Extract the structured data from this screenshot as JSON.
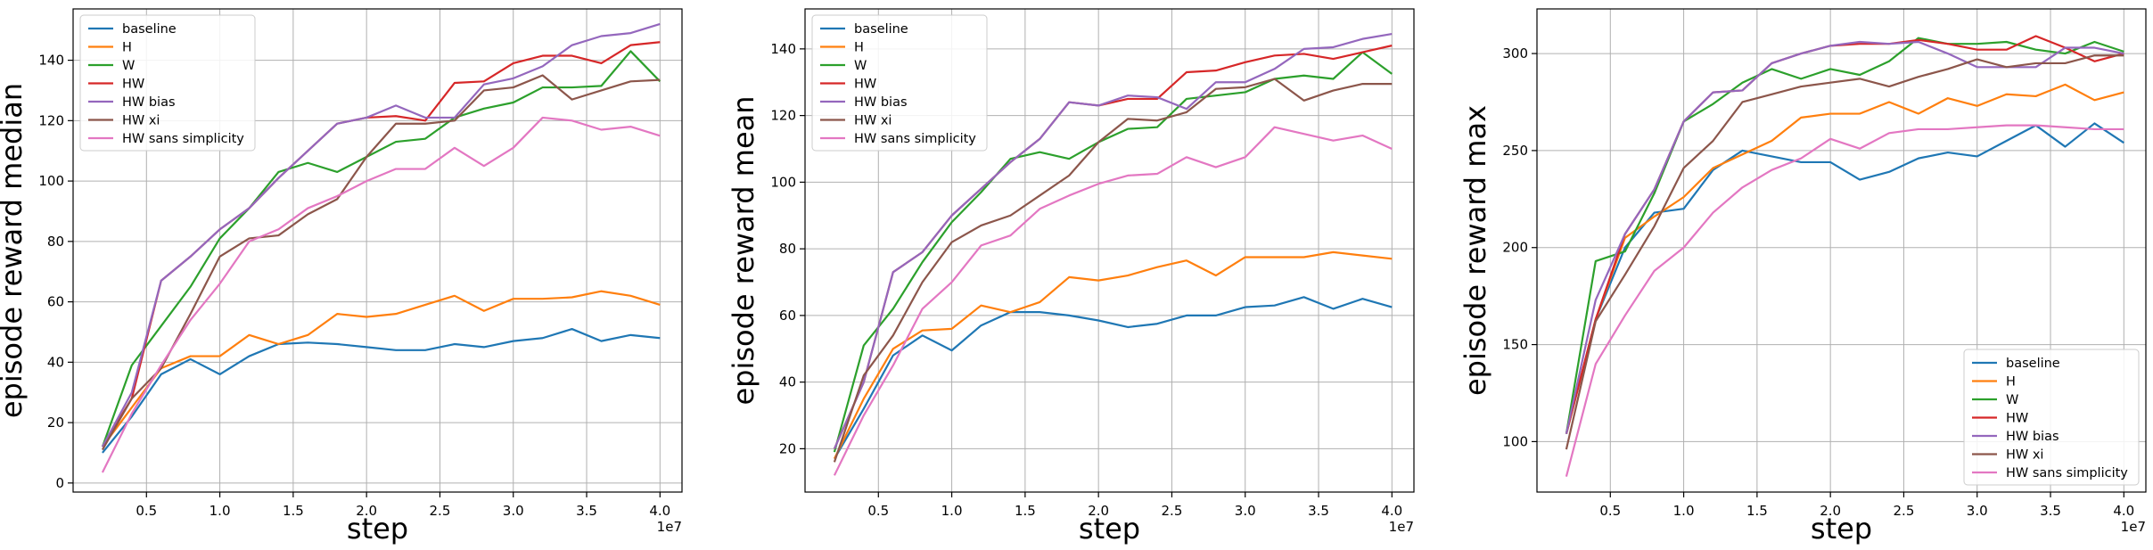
{
  "colors": {
    "baseline": "#1f77b4",
    "H": "#ff7f0e",
    "W": "#2ca02c",
    "HW": "#d62728",
    "HW bias": "#9467bd",
    "HW xi": "#8c564b",
    "HW sans simplicity": "#e377c2",
    "grid": "#b0b0b0",
    "axis": "#000000"
  },
  "chart_data": [
    {
      "type": "line",
      "ylabel": "episode reward median",
      "xlabel": "step",
      "x_offset_label": "1e7",
      "x_scale": 10000000,
      "xlim": [
        0.0,
        4.15
      ],
      "ylim": [
        -3,
        157
      ],
      "xticks": [
        0.5,
        1.0,
        1.5,
        2.0,
        2.5,
        3.0,
        3.5,
        4.0
      ],
      "xtick_labels": [
        "0.5",
        "1.0",
        "1.5",
        "2.0",
        "2.5",
        "3.0",
        "3.5",
        "4.0"
      ],
      "yticks": [
        0,
        20,
        40,
        60,
        80,
        100,
        120,
        140
      ],
      "ytick_labels": [
        "0",
        "20",
        "40",
        "60",
        "80",
        "100",
        "120",
        "140"
      ],
      "grid": true,
      "legend": "top-left",
      "x": [
        0.2,
        0.4,
        0.6,
        0.8,
        1.0,
        1.2,
        1.4,
        1.6,
        1.8,
        2.0,
        2.2,
        2.4,
        2.6,
        2.8,
        3.0,
        3.2,
        3.4,
        3.6,
        3.8,
        4.0
      ],
      "series": [
        {
          "name": "baseline",
          "values": [
            10,
            22,
            36,
            41,
            36,
            42,
            46,
            46.5,
            46,
            45,
            44,
            44,
            46,
            45,
            47,
            48,
            51,
            47,
            49,
            48
          ]
        },
        {
          "name": "H",
          "values": [
            12,
            25,
            38,
            42,
            42,
            49,
            46,
            49,
            56,
            55,
            56,
            59,
            62,
            57,
            61,
            61,
            61.5,
            63.5,
            62,
            59
          ]
        },
        {
          "name": "W",
          "values": [
            12,
            39,
            52,
            65,
            81,
            91,
            103,
            106,
            103,
            108,
            113,
            114,
            121,
            124,
            126,
            131,
            131,
            131.5,
            143,
            133
          ]
        },
        {
          "name": "HW",
          "values": [
            12,
            28,
            67,
            75,
            84,
            91,
            101,
            110,
            119,
            121,
            121.5,
            120,
            132.5,
            133,
            139,
            141.5,
            141.5,
            139,
            145,
            146
          ]
        },
        {
          "name": "HW bias",
          "values": [
            12,
            30,
            67,
            75,
            84,
            91,
            101,
            110,
            119,
            121,
            125,
            121,
            121,
            132,
            134,
            138,
            145,
            148,
            149,
            152
          ]
        },
        {
          "name": "HW xi",
          "values": [
            11,
            28,
            38,
            56,
            75,
            81,
            82,
            89,
            94,
            108,
            119,
            119,
            120,
            130,
            131,
            135,
            127,
            130,
            133,
            133.5
          ]
        },
        {
          "name": "HW sans simplicity",
          "values": [
            3.5,
            23,
            39,
            54,
            66,
            80,
            84,
            91,
            95,
            100,
            104,
            104,
            111,
            105,
            111,
            121,
            120,
            117,
            118,
            115
          ]
        }
      ]
    },
    {
      "type": "line",
      "ylabel": "episode reward mean",
      "xlabel": "step",
      "x_offset_label": "1e7",
      "x_scale": 10000000,
      "xlim": [
        0.0,
        4.15
      ],
      "ylim": [
        7,
        152
      ],
      "xticks": [
        0.5,
        1.0,
        1.5,
        2.0,
        2.5,
        3.0,
        3.5,
        4.0
      ],
      "xtick_labels": [
        "0.5",
        "1.0",
        "1.5",
        "2.0",
        "2.5",
        "3.0",
        "3.5",
        "4.0"
      ],
      "yticks": [
        20,
        40,
        60,
        80,
        100,
        120,
        140
      ],
      "ytick_labels": [
        "20",
        "40",
        "60",
        "80",
        "100",
        "120",
        "140"
      ],
      "grid": true,
      "legend": "top-left",
      "x": [
        0.2,
        0.4,
        0.6,
        0.8,
        1.0,
        1.2,
        1.4,
        1.6,
        1.8,
        2.0,
        2.2,
        2.4,
        2.6,
        2.8,
        3.0,
        3.2,
        3.4,
        3.6,
        3.8,
        4.0
      ],
      "series": [
        {
          "name": "baseline",
          "values": [
            17,
            32,
            48,
            54,
            49.5,
            57,
            61,
            61,
            60,
            58.5,
            56.5,
            57.5,
            60,
            60,
            62.5,
            63,
            65.5,
            62,
            65,
            62.5
          ]
        },
        {
          "name": "H",
          "values": [
            17,
            35,
            50,
            55.5,
            56,
            63,
            61,
            64,
            71.5,
            70.5,
            72,
            74.5,
            76.5,
            72,
            77.5,
            77.5,
            77.5,
            79,
            78,
            77
          ]
        },
        {
          "name": "W",
          "values": [
            19,
            51,
            62,
            76,
            88,
            97,
            107,
            109,
            107,
            112,
            116,
            116.5,
            125,
            126,
            127,
            131,
            132,
            131,
            139,
            132.5
          ]
        },
        {
          "name": "HW",
          "values": [
            20,
            40,
            73,
            79,
            90,
            98,
            106,
            113,
            124,
            123,
            125,
            125,
            133,
            133.5,
            136,
            138,
            138.5,
            137,
            139,
            141
          ]
        },
        {
          "name": "HW bias",
          "values": [
            20,
            40,
            73,
            79,
            90,
            98,
            106,
            113,
            124,
            123,
            126,
            125.5,
            122,
            130,
            130,
            134,
            140,
            140.5,
            143,
            144.5
          ]
        },
        {
          "name": "HW xi",
          "values": [
            16,
            42,
            54,
            70,
            82,
            87,
            90,
            96,
            102,
            112,
            119,
            118.5,
            121,
            128,
            128.5,
            131,
            124.5,
            127.5,
            129.5,
            129.5
          ]
        },
        {
          "name": "HW sans simplicity",
          "values": [
            12,
            30,
            45,
            62,
            70,
            81,
            84,
            92,
            96,
            99.5,
            102,
            102.5,
            107.5,
            104.5,
            107.5,
            116.5,
            114.5,
            112.5,
            114,
            110
          ]
        }
      ]
    },
    {
      "type": "line",
      "ylabel": "episode reward max",
      "xlabel": "step",
      "x_offset_label": "1e7",
      "x_scale": 10000000,
      "xlim": [
        0.0,
        4.15
      ],
      "ylim": [
        74,
        323
      ],
      "xticks": [
        0.5,
        1.0,
        1.5,
        2.0,
        2.5,
        3.0,
        3.5,
        4.0
      ],
      "xtick_labels": [
        "0.5",
        "1.0",
        "1.5",
        "2.0",
        "2.5",
        "3.0",
        "3.5",
        "4.0"
      ],
      "yticks": [
        100,
        150,
        200,
        250,
        300
      ],
      "ytick_labels": [
        "100",
        "150",
        "200",
        "250",
        "300"
      ],
      "grid": true,
      "legend": "bottom-right",
      "x": [
        0.2,
        0.4,
        0.6,
        0.8,
        1.0,
        1.2,
        1.4,
        1.6,
        1.8,
        2.0,
        2.2,
        2.4,
        2.6,
        2.8,
        3.0,
        3.2,
        3.4,
        3.6,
        3.8,
        4.0
      ],
      "series": [
        {
          "name": "baseline",
          "values": [
            104,
            163,
            200,
            218,
            220,
            240,
            250,
            247,
            244,
            244,
            235,
            239,
            246,
            249,
            247,
            255,
            263,
            252,
            264,
            254
          ]
        },
        {
          "name": "H",
          "values": [
            104,
            163,
            205,
            216,
            226,
            241,
            248,
            255,
            267,
            269,
            269,
            275,
            269,
            277,
            273,
            279,
            278,
            284,
            276,
            280
          ]
        },
        {
          "name": "W",
          "values": [
            104,
            193,
            198,
            228,
            265,
            274,
            285,
            292,
            287,
            292,
            289,
            296,
            308,
            305,
            305,
            306,
            302,
            300,
            306,
            301
          ]
        },
        {
          "name": "HW",
          "values": [
            104,
            163,
            207,
            230,
            265,
            280,
            281,
            295,
            300,
            304,
            305,
            305,
            307,
            305,
            302,
            302,
            309,
            303,
            296,
            300
          ]
        },
        {
          "name": "HW bias",
          "values": [
            104,
            173,
            207,
            230,
            265,
            280,
            281,
            295,
            300,
            304,
            306,
            305,
            306,
            300,
            293,
            293,
            293,
            303,
            303,
            300
          ]
        },
        {
          "name": "HW xi",
          "values": [
            96,
            162,
            186,
            211,
            241,
            255,
            275,
            279,
            283,
            285,
            287,
            283,
            288,
            292,
            297,
            293,
            295,
            295,
            299,
            299
          ]
        },
        {
          "name": "HW sans simplicity",
          "values": [
            82,
            140,
            165,
            188,
            200,
            218,
            231,
            240,
            246,
            256,
            251,
            259,
            261,
            261,
            262,
            263,
            263,
            262,
            261,
            261
          ]
        }
      ]
    }
  ]
}
